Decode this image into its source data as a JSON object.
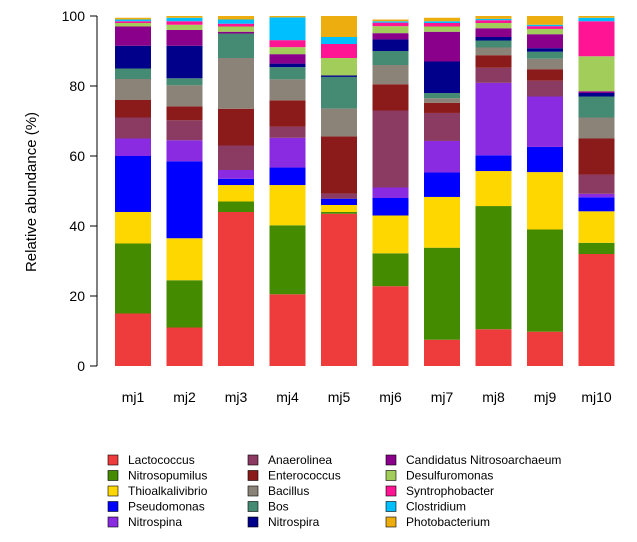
{
  "chart_data": {
    "type": "bar",
    "stacked": true,
    "title": "",
    "xlabel": "",
    "ylabel": "Relative abundance (%)",
    "ylim": [
      0,
      100
    ],
    "yticks": [
      0,
      20,
      40,
      60,
      80,
      100
    ],
    "grid": false,
    "legend_position": "bottom",
    "categories": [
      "mj1",
      "mj2",
      "mj3",
      "mj4",
      "mj5",
      "mj6",
      "mj7",
      "mj8",
      "mj9",
      "mj10"
    ],
    "series": [
      {
        "name": "Lactococcus",
        "color": "#EE3B3B",
        "values": [
          15.0,
          11.0,
          44.0,
          20.5,
          43.5,
          22.8,
          7.5,
          10.5,
          9.8,
          32.0
        ]
      },
      {
        "name": "Nitrosopumilus",
        "color": "#458B00",
        "values": [
          20.0,
          13.5,
          3.0,
          19.7,
          0.5,
          9.4,
          26.3,
          35.2,
          29.2,
          3.2
        ]
      },
      {
        "name": "Thioalkalivibrio",
        "color": "#FFD700",
        "values": [
          9.0,
          12.0,
          4.7,
          11.5,
          2.0,
          10.8,
          14.5,
          10.0,
          16.4,
          9.0
        ]
      },
      {
        "name": "Pseudomonas",
        "color": "#0000FF",
        "values": [
          16.0,
          22.0,
          1.8,
          5.0,
          1.8,
          5.0,
          7.0,
          4.5,
          7.2,
          4.0
        ]
      },
      {
        "name": "Nitrospina",
        "color": "#8A2BE2",
        "values": [
          5.0,
          6.0,
          2.5,
          8.5,
          0.0,
          3.0,
          9.0,
          20.7,
          14.4,
          1.0
        ]
      },
      {
        "name": "Anaerolinea",
        "color": "#8B3A62",
        "values": [
          6.0,
          5.7,
          7.0,
          3.2,
          1.5,
          22.0,
          8.0,
          4.3,
          4.5,
          5.5
        ]
      },
      {
        "name": "Enterococcus",
        "color": "#8B1A1A",
        "values": [
          5.0,
          4.0,
          10.5,
          7.5,
          16.3,
          7.5,
          2.9,
          3.6,
          3.3,
          10.3
        ]
      },
      {
        "name": "Bacillus",
        "color": "#8B8378",
        "values": [
          6.0,
          6.0,
          14.5,
          6.0,
          8.0,
          5.5,
          1.3,
          2.2,
          3.0,
          6.0
        ]
      },
      {
        "name": "Bos",
        "color": "#458B74",
        "values": [
          3.0,
          2.0,
          7.0,
          3.5,
          9.0,
          4.0,
          1.5,
          2.0,
          2.0,
          6.0
        ]
      },
      {
        "name": "Nitrospira",
        "color": "#00008B",
        "values": [
          6.5,
          9.3,
          0.0,
          1.0,
          0.4,
          3.3,
          9.0,
          1.0,
          1.0,
          1.0
        ]
      },
      {
        "name": "Candidatus Nitrosoarchaeum",
        "color": "#8B008B",
        "values": [
          5.5,
          4.5,
          0.5,
          2.7,
          0.0,
          1.8,
          8.5,
          2.5,
          4.0,
          0.5
        ]
      },
      {
        "name": "Desulfuromonas",
        "color": "#A2CD5A",
        "values": [
          1.0,
          1.5,
          1.5,
          2.0,
          5.0,
          2.0,
          1.5,
          1.5,
          1.5,
          10.0
        ]
      },
      {
        "name": "Syntrophobacter",
        "color": "#FF1493",
        "values": [
          0.5,
          1.0,
          0.8,
          2.0,
          4.0,
          1.0,
          1.0,
          0.8,
          0.8,
          10.0
        ]
      },
      {
        "name": "Clostridium",
        "color": "#00BFFF",
        "values": [
          0.5,
          1.0,
          1.2,
          6.5,
          2.0,
          0.4,
          0.5,
          0.4,
          0.4,
          1.0
        ]
      },
      {
        "name": "Photobacterium",
        "color": "#EEAD0E",
        "values": [
          0.5,
          0.5,
          1.0,
          0.4,
          6.0,
          0.5,
          1.0,
          0.8,
          2.5,
          0.5
        ]
      }
    ]
  }
}
